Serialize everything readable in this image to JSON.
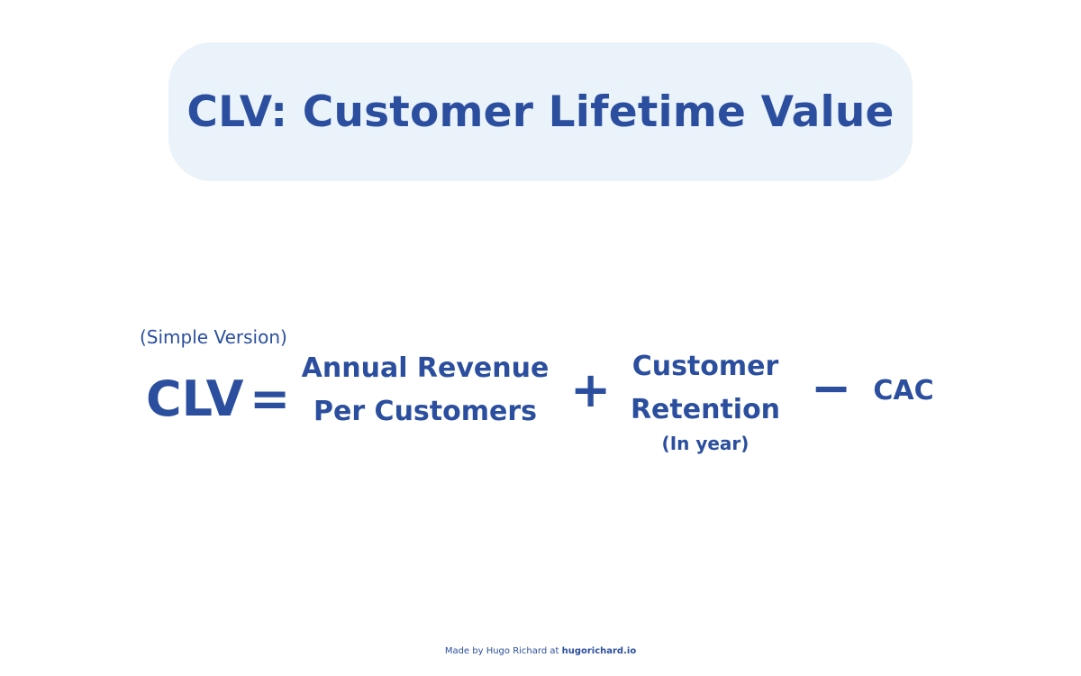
{
  "title": "CLV: Customer Lifetime Value",
  "formula": {
    "variant_label": "(Simple Version)",
    "result": "CLV",
    "equals": "=",
    "term1_line1": "Annual Revenue",
    "term1_line2": "Per Customers",
    "op1": "+",
    "term2_line1": "Customer",
    "term2_line2": "Retention",
    "term2_note": "(In year)",
    "op2": "−",
    "term3": "CAC"
  },
  "footer": {
    "prefix": "Made by Hugo Richard at ",
    "site": "hugorichard.io"
  },
  "colors": {
    "primary_text": "#2b4f9e",
    "title_background": "#eaf2fa",
    "page_background": "#ffffff"
  }
}
